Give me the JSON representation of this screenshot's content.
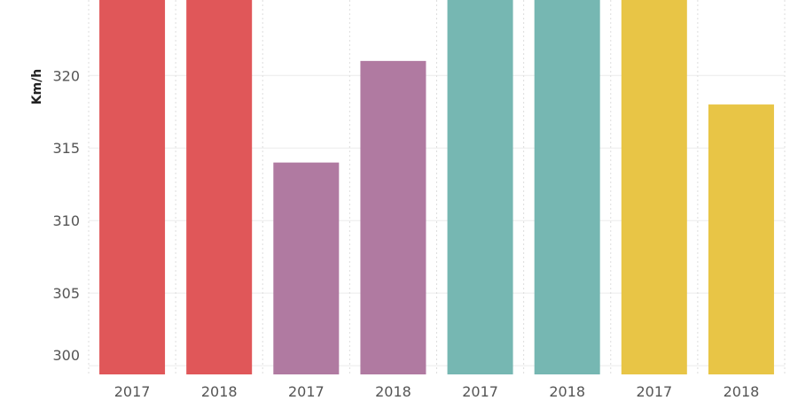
{
  "chart_data": {
    "type": "bar",
    "title": "",
    "xlabel": "",
    "ylabel": "Km/h",
    "ylim": [
      299.4,
      325.2
    ],
    "yticks": [
      300,
      305,
      310,
      315,
      320
    ],
    "grid": true,
    "categories": [
      "2017",
      "2018",
      "2017",
      "2018",
      "2017",
      "2018",
      "2017",
      "2018"
    ],
    "values": [
      326,
      326,
      314,
      321,
      326,
      326,
      326,
      318
    ],
    "bar_colors": [
      "#e05759",
      "#e05759",
      "#b07aa1",
      "#b07aa1",
      "#76b7b2",
      "#76b7b2",
      "#e8c546",
      "#e8c546"
    ]
  }
}
